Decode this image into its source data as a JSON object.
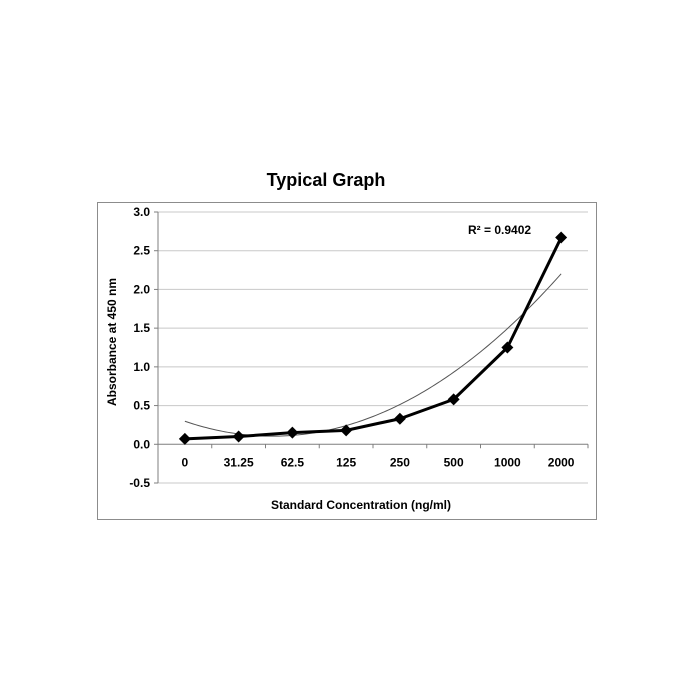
{
  "chart_data": {
    "type": "line",
    "title": "Typical Graph",
    "xlabel": "Standard Concentration (ng/ml)",
    "ylabel": "Absorbance at 450 nm",
    "categories": [
      "0",
      "31.25",
      "62.5",
      "125",
      "250",
      "500",
      "1000",
      "2000"
    ],
    "series": [
      {
        "values": [
          0.07,
          0.1,
          0.15,
          0.18,
          0.33,
          0.58,
          1.25,
          2.67
        ]
      }
    ],
    "trendline": {
      "type": "polynomial",
      "order": 2,
      "coefficients": [
        0.6073,
        -0.3823,
        0.0727
      ],
      "annotation": "R² = 0.9402"
    },
    "ylim": [
      -0.5,
      3.0
    ],
    "yticks": [
      "-0.5",
      "0.0",
      "0.5",
      "1.0",
      "1.5",
      "2.0",
      "2.5",
      "3.0"
    ],
    "grid": true,
    "legend": "none",
    "colors": {
      "series": "#000000",
      "trendline": "#555555",
      "grid": "#c8c8c8"
    }
  }
}
